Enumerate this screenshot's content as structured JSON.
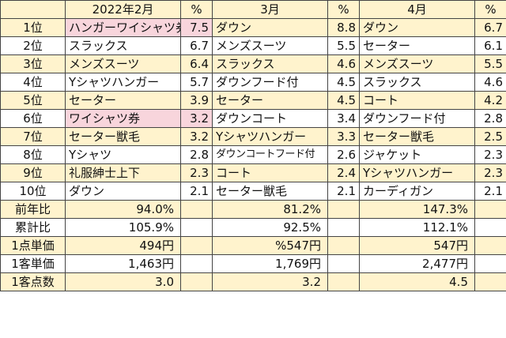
{
  "header": {
    "months": [
      "2022年2月",
      "3月",
      "4月"
    ],
    "pct_label": "%"
  },
  "ranking": [
    {
      "rank": "1位",
      "cells": [
        [
          "ハンガーワイシャツ券",
          "7.5"
        ],
        [
          "ダウン",
          "8.8"
        ],
        [
          "ダウン",
          "6.7"
        ]
      ]
    },
    {
      "rank": "2位",
      "cells": [
        [
          "スラックス",
          "6.7"
        ],
        [
          "メンズスーツ",
          "5.5"
        ],
        [
          "セーター",
          "6.1"
        ]
      ]
    },
    {
      "rank": "3位",
      "cells": [
        [
          "メンズスーツ",
          "6.4"
        ],
        [
          "スラックス",
          "4.6"
        ],
        [
          "メンズスーツ",
          "5.5"
        ]
      ]
    },
    {
      "rank": "4位",
      "cells": [
        [
          "Yシャツハンガー",
          "5.7"
        ],
        [
          "ダウンフード付",
          "4.5"
        ],
        [
          "スラックス",
          "4.6"
        ]
      ]
    },
    {
      "rank": "5位",
      "cells": [
        [
          "セーター",
          "3.9"
        ],
        [
          "セーター",
          "4.5"
        ],
        [
          "コート",
          "4.2"
        ]
      ]
    },
    {
      "rank": "6位",
      "cells": [
        [
          "ワイシャツ券",
          "3.2"
        ],
        [
          "ダウンコート",
          "3.4"
        ],
        [
          "ダウンフード付",
          "2.8"
        ]
      ]
    },
    {
      "rank": "7位",
      "cells": [
        [
          "セーター獣毛",
          "3.2"
        ],
        [
          "Yシャツハンガー",
          "3.3"
        ],
        [
          "セーター獣毛",
          "2.5"
        ]
      ]
    },
    {
      "rank": "8位",
      "cells": [
        [
          "Yシャツ",
          "2.8"
        ],
        [
          "ダウンコートフード付",
          "2.6"
        ],
        [
          "ジャケット",
          "2.3"
        ]
      ]
    },
    {
      "rank": "9位",
      "cells": [
        [
          "礼服紳士上下",
          "2.3"
        ],
        [
          "コート",
          "2.4"
        ],
        [
          "Yシャツハンガー",
          "2.3"
        ]
      ]
    },
    {
      "rank": "10位",
      "cells": [
        [
          "ダウン",
          "2.1"
        ],
        [
          "セーター獣毛",
          "2.1"
        ],
        [
          "カーディガン",
          "2.1"
        ]
      ]
    }
  ],
  "highlight_color": "#f8d5dc",
  "row_band_color": "#fff3cd",
  "stats": [
    {
      "label": "前年比",
      "values": [
        "94.0%",
        "81.2%",
        "147.3%"
      ]
    },
    {
      "label": "累計比",
      "values": [
        "105.9%",
        "92.5%",
        "112.1%"
      ]
    },
    {
      "label": "1点単価",
      "values": [
        "494円",
        "%547円",
        "547円"
      ]
    },
    {
      "label": "1客単価",
      "values": [
        "1,463円",
        "1,769円",
        "2,477円"
      ]
    },
    {
      "label": "1客点数",
      "values": [
        "3.0",
        "3.2",
        "4.5"
      ]
    }
  ]
}
